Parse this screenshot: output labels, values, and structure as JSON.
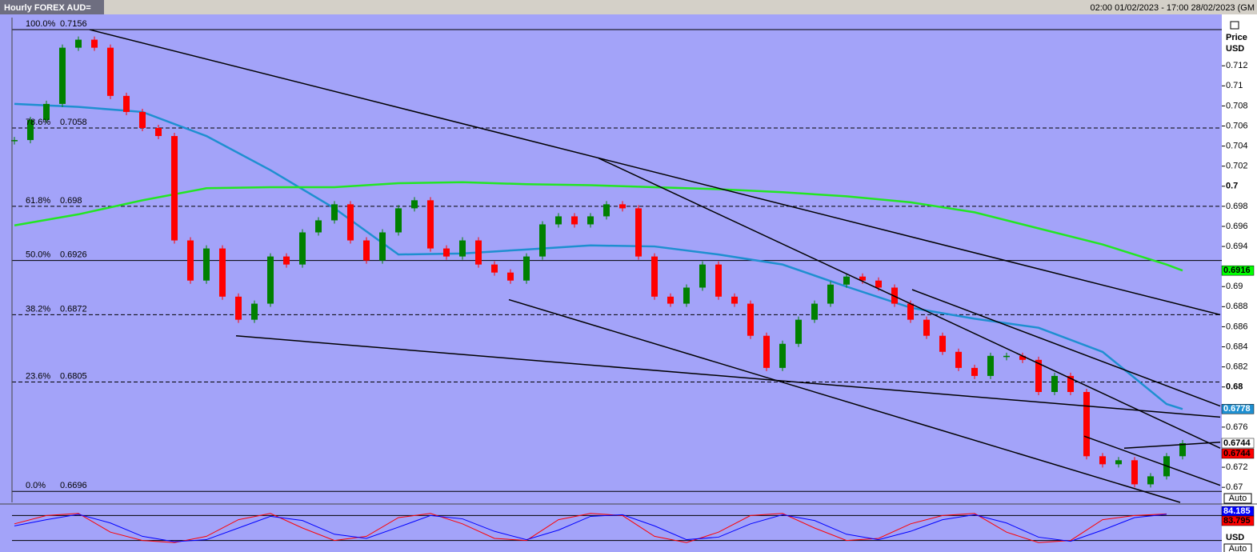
{
  "chart_data": {
    "type": "candlestick",
    "title": "Hourly FOREX AUD=",
    "subtitle": "02:00 01/02/2023 - 17:00 28/02/2023 (GM",
    "y_label": "Price",
    "y_unit": "USD",
    "xlim": [
      -0.15,
      75.35
    ],
    "ylim": [
      0.6685,
      0.7168
    ],
    "yticks": [
      0.712,
      0.71,
      0.708,
      0.706,
      0.704,
      0.702,
      0.7,
      0.698,
      0.696,
      0.694,
      0.69,
      0.688,
      0.686,
      0.684,
      0.682,
      0.68,
      0.676,
      0.672,
      0.67
    ],
    "price": {
      "up_color": "#008000",
      "down_color": "#ff0000",
      "values": [
        0.7046,
        0.7066,
        0.7082,
        0.7138,
        0.7146,
        0.7138,
        0.709,
        0.7074,
        0.7058,
        0.705,
        0.6946,
        0.6906,
        0.6938,
        0.689,
        0.6867,
        0.6883,
        0.693,
        0.6922,
        0.6954,
        0.6966,
        0.6982,
        0.6946,
        0.6926,
        0.6954,
        0.6978,
        0.6986,
        0.6938,
        0.693,
        0.6946,
        0.6922,
        0.6914,
        0.6906,
        0.693,
        0.6962,
        0.697,
        0.6962,
        0.697,
        0.6982,
        0.6978,
        0.693,
        0.689,
        0.6883,
        0.6899,
        0.6922,
        0.689,
        0.6883,
        0.6851,
        0.6819,
        0.6843,
        0.6867,
        0.6883,
        0.6902,
        0.691,
        0.6906,
        0.6899,
        0.6883,
        0.6867,
        0.6851,
        0.6835,
        0.6819,
        0.6811,
        0.6831,
        0.6831,
        0.6827,
        0.6795,
        0.6811,
        0.6795,
        0.6731,
        0.6723,
        0.6727,
        0.6703,
        0.6711,
        0.6731,
        0.6744
      ]
    },
    "moving_averages": [
      {
        "color": "#1e8fd0",
        "x": [
          0,
          4,
          8,
          12,
          16,
          20,
          24,
          28,
          32,
          36,
          40,
          44,
          48,
          52,
          56,
          60,
          64,
          68,
          72,
          73
        ],
        "values": [
          0.7082,
          0.7079,
          0.7074,
          0.705,
          0.7016,
          0.6978,
          0.6932,
          0.6933,
          0.6937,
          0.6941,
          0.694,
          0.6932,
          0.6922,
          0.69,
          0.6879,
          0.6868,
          0.6859,
          0.6835,
          0.6783,
          0.6778
        ]
      },
      {
        "color": "#22e622",
        "x": [
          0,
          4,
          8,
          12,
          16,
          20,
          24,
          28,
          32,
          36,
          40,
          44,
          48,
          52,
          56,
          60,
          64,
          68,
          72,
          73
        ],
        "values": [
          0.6961,
          0.6972,
          0.6986,
          0.6998,
          0.6999,
          0.6999,
          0.7003,
          0.7004,
          0.7002,
          0.7001,
          0.6999,
          0.6997,
          0.6994,
          0.699,
          0.6984,
          0.6974,
          0.6958,
          0.6942,
          0.6922,
          0.6916
        ]
      }
    ],
    "fib_levels": [
      {
        "label": "100.0%",
        "value": 0.7156,
        "style": "solid"
      },
      {
        "label": "78.6%",
        "value": 0.7058,
        "style": "dashed"
      },
      {
        "label": "61.8%",
        "value": 0.698,
        "style": "dashed"
      },
      {
        "label": "50.0%",
        "value": 0.6926,
        "style": "solid"
      },
      {
        "label": "38.2%",
        "value": 0.6872,
        "style": "dashed"
      },
      {
        "label": "23.6%",
        "value": 0.6805,
        "style": "dashed"
      },
      {
        "label": "0.0%",
        "value": 0.6696,
        "style": "solid"
      }
    ],
    "trendlines": [
      {
        "x": [
          4.7,
          75.35
        ],
        "values": [
          0.7156,
          0.6872
        ]
      },
      {
        "x": [
          36.5,
          75.35
        ],
        "values": [
          0.7028,
          0.6739
        ]
      },
      {
        "x": [
          56.1,
          75.35
        ],
        "values": [
          0.6897,
          0.6781
        ]
      },
      {
        "x": [
          13.85,
          75.35
        ],
        "values": [
          0.6851,
          0.677
        ]
      },
      {
        "x": [
          30.9,
          72.85
        ],
        "values": [
          0.6887,
          0.6685
        ]
      },
      {
        "x": [
          66.85,
          75.35
        ],
        "values": [
          0.6751,
          0.6702
        ]
      },
      {
        "x": [
          69.35,
          75.35
        ],
        "values": [
          0.6739,
          0.6745
        ]
      }
    ],
    "tags": [
      {
        "value": 0.6916,
        "color": "#00ff00",
        "text_color": "#000000"
      },
      {
        "value": 0.6778,
        "color": "#1e8fd0",
        "text_color": "#ffffff"
      },
      {
        "value": 0.6744,
        "color": "#ffffff",
        "text_color": "#000000"
      },
      {
        "value": 0.6744,
        "color": "#ff0000",
        "text_color": "#000000"
      }
    ],
    "buttons": [
      "Auto",
      "Auto"
    ],
    "stochastic": {
      "ylim": [
        0,
        100
      ],
      "levels": [
        80,
        20
      ],
      "unit": "USD",
      "x": [
        0,
        2,
        4,
        6,
        8,
        10,
        12,
        14,
        16,
        18,
        20,
        22,
        24,
        26,
        28,
        30,
        32,
        34,
        36,
        38,
        40,
        42,
        44,
        46,
        48,
        50,
        52,
        54,
        56,
        58,
        60,
        62,
        64,
        66,
        68,
        70,
        72
      ],
      "series": [
        {
          "color": "#ff0000",
          "values": [
            60,
            80,
            85,
            40,
            20,
            15,
            30,
            70,
            85,
            50,
            20,
            30,
            75,
            85,
            60,
            25,
            20,
            70,
            85,
            80,
            30,
            15,
            40,
            80,
            85,
            50,
            20,
            25,
            60,
            80,
            85,
            40,
            15,
            20,
            70,
            80,
            84
          ]
        },
        {
          "color": "#0000ff",
          "values": [
            55,
            70,
            83,
            62,
            30,
            17,
            22,
            50,
            78,
            68,
            35,
            25,
            52,
            80,
            72,
            42,
            22,
            45,
            78,
            82,
            55,
            22,
            28,
            60,
            82,
            68,
            35,
            22,
            42,
            70,
            82,
            62,
            28,
            18,
            45,
            75,
            83
          ]
        }
      ],
      "tags": [
        {
          "value": 84.185,
          "color": "#0000ff",
          "text_color": "#ffffff"
        },
        {
          "value": 83.795,
          "color": "#ff0000",
          "text_color": "#000000"
        }
      ]
    }
  }
}
